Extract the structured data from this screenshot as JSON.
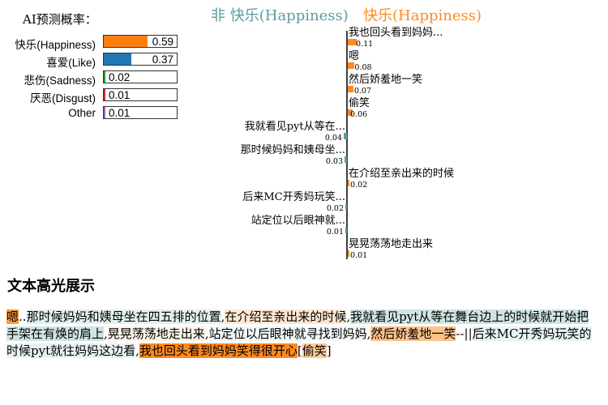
{
  "prediction": {
    "title": "AI预测概率：",
    "items": [
      {
        "label": "快乐(Happiness)",
        "value": 0.59,
        "value_text": "0.59",
        "color": "#ff7f0e"
      },
      {
        "label": "喜爱(Like)",
        "value": 0.37,
        "value_text": "0.37",
        "color": "#1f77b4"
      },
      {
        "label": "悲伤(Sadness)",
        "value": 0.02,
        "value_text": "0.02",
        "color": "#2ca02c"
      },
      {
        "label": "厌恶(Disgust)",
        "value": 0.01,
        "value_text": "0.01",
        "color": "#d62728"
      },
      {
        "label": "Other",
        "value": 0.01,
        "value_text": "0.01",
        "color": "#9467bd"
      }
    ]
  },
  "legend": {
    "negative": "非 快乐(Happiness)",
    "positive": "快乐(Happiness)",
    "negative_color": "#5a9da0",
    "positive_color": "#ff8a1e"
  },
  "chart_data": {
    "type": "bar",
    "orientation": "horizontal-diverging",
    "categories": [
      "我也回头看到妈妈...",
      "嗯",
      "然后娇羞地一笑",
      "偷笑",
      "我就看见pyt从等在...",
      "那时候妈妈和姨母坐...",
      "在介绍至亲出来的时候",
      "后来MC开秀妈玩笑...",
      "站定位以后眼神就...",
      "晃晃荡荡地走出来"
    ],
    "values": [
      0.11,
      0.08,
      0.07,
      0.06,
      -0.04,
      -0.03,
      0.02,
      -0.02,
      -0.01,
      0.01
    ],
    "value_labels": [
      "0.11",
      "0.08",
      "0.07",
      "0.06",
      "0.04",
      "0.03",
      "0.02",
      "0.02",
      "0.01",
      "0.01"
    ],
    "series": [
      {
        "name": "快乐(Happiness)",
        "color": "#ff8a1e"
      },
      {
        "name": "非 快乐(Happiness)",
        "color": "#5a9da0"
      }
    ]
  },
  "highlight": {
    "title": "文本高光展示",
    "segments": [
      {
        "text": "嗯",
        "bg": "#ff9a3c"
      },
      {
        "text": "..",
        "bg": ""
      },
      {
        "text": "那时候妈妈和姨母坐在四五排的位置",
        "bg": "#e3f0f0"
      },
      {
        "text": ",",
        "bg": ""
      },
      {
        "text": "在介绍至亲出来的时候",
        "bg": "#ffe7d1"
      },
      {
        "text": ",",
        "bg": ""
      },
      {
        "text": "我就看见pyt从等在舞台边上的时候就开始把手架在有焕的肩上",
        "bg": "#cfe4e3"
      },
      {
        "text": ",",
        "bg": ""
      },
      {
        "text": "晃晃荡荡地走出来",
        "bg": "#fff4ea"
      },
      {
        "text": ",",
        "bg": ""
      },
      {
        "text": "站定位以后眼神就寻找到妈妈",
        "bg": "#f2f8f8"
      },
      {
        "text": ",",
        "bg": ""
      },
      {
        "text": "然后娇羞地一笑",
        "bg": "#ffc28a"
      },
      {
        "text": "--||",
        "bg": ""
      },
      {
        "text": "后来MC开秀妈玩笑的时候pyt就往妈妈这边看",
        "bg": "#e8f3f3"
      },
      {
        "text": ",",
        "bg": ""
      },
      {
        "text": "我也回头看到妈妈笑得很开心",
        "bg": "#ff8a1e"
      },
      {
        "text": "[",
        "bg": ""
      },
      {
        "text": "偷笑",
        "bg": "#ffcb98"
      },
      {
        "text": "]",
        "bg": ""
      }
    ]
  }
}
